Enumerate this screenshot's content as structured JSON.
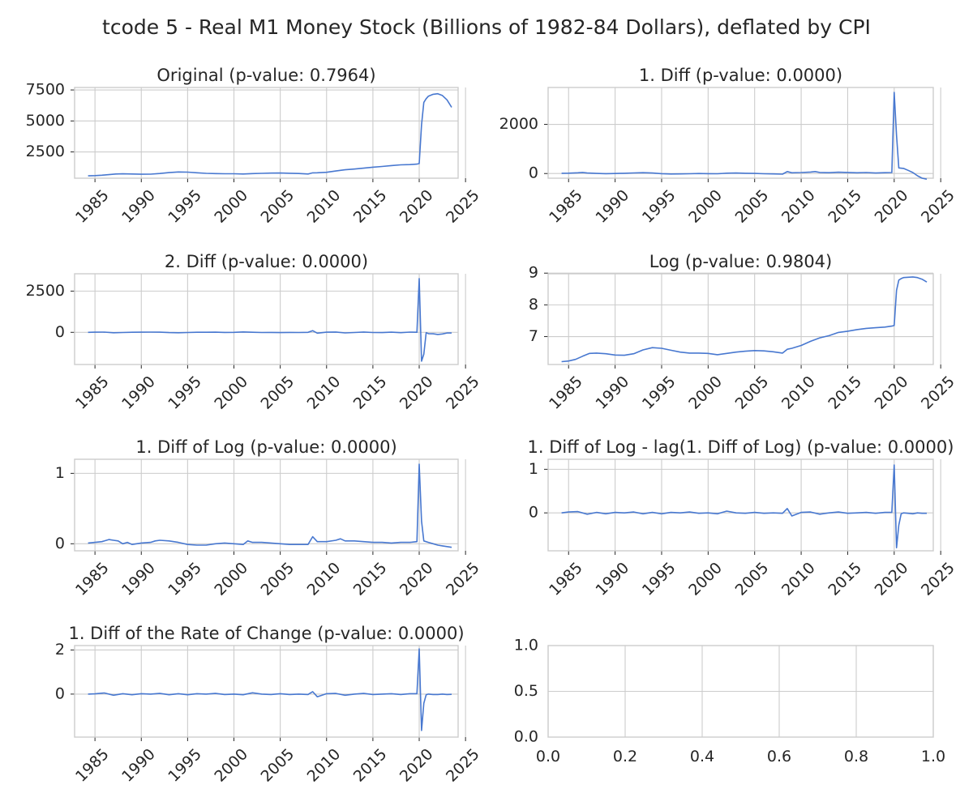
{
  "figure": {
    "suptitle": "tcode 5 - Real M1 Money Stock (Billions of 1982-84 Dollars), deflated by CPI",
    "line_color": "#4878d0",
    "grid_color": "#cccccc"
  },
  "chart_data": [
    {
      "type": "line",
      "title": "Original (p-value: 0.7964)",
      "xticks": [
        "1985",
        "1990",
        "1995",
        "2000",
        "2005",
        "2010",
        "2015",
        "2020",
        "2025"
      ],
      "yticks": [
        2500,
        5000,
        7500
      ],
      "xlim": [
        1982.8,
        2024.2
      ],
      "ylim": [
        380,
        7700
      ],
      "series": [
        {
          "x": [
            1984.25,
            1985.0,
            1985.75,
            1986.5,
            1987.25,
            1988.0,
            1989.0,
            1990.0,
            1991.0,
            1992.0,
            1993.0,
            1994.0,
            1995.0,
            1996.0,
            1997.0,
            1998.0,
            1999.0,
            2000.0,
            2001.0,
            2002.0,
            2003.0,
            2004.0,
            2005.0,
            2006.0,
            2007.0,
            2008.0,
            2008.5,
            2009.0,
            2010.0,
            2011.0,
            2012.0,
            2013.0,
            2014.0,
            2015.0,
            2016.0,
            2017.0,
            2018.0,
            2019.0,
            2019.75,
            2020.0,
            2020.25,
            2020.5,
            2020.75,
            2021.0,
            2021.5,
            2022.0,
            2022.5,
            2023.0,
            2023.5
          ],
          "y": [
            570,
            590,
            620,
            670,
            720,
            730,
            720,
            700,
            710,
            760,
            830,
            880,
            870,
            820,
            770,
            750,
            740,
            740,
            720,
            750,
            770,
            790,
            800,
            780,
            760,
            720,
            810,
            820,
            860,
            960,
            1060,
            1120,
            1190,
            1270,
            1330,
            1400,
            1460,
            1480,
            1520,
            1560,
            4700,
            6500,
            6800,
            7000,
            7150,
            7200,
            7050,
            6700,
            6100
          ]
        }
      ]
    },
    {
      "type": "line",
      "title": "1. Diff (p-value: 0.0000)",
      "xticks": [
        "1985",
        "1990",
        "1995",
        "2000",
        "2005",
        "2010",
        "2015",
        "2020",
        "2025"
      ],
      "yticks": [
        0,
        2000
      ],
      "xlim": [
        1982.8,
        2024.2
      ],
      "ylim": [
        -190,
        3500
      ],
      "series": [
        {
          "x": [
            1984.25,
            1985.0,
            1986.0,
            1986.5,
            1987.0,
            1988.0,
            1989.0,
            1990.0,
            1991.0,
            1992.0,
            1993.0,
            1994.0,
            1995.0,
            1996.0,
            1997.0,
            1998.0,
            1999.0,
            2000.0,
            2001.0,
            2002.0,
            2003.0,
            2004.0,
            2005.0,
            2006.0,
            2007.0,
            2008.0,
            2008.5,
            2009.0,
            2010.0,
            2011.0,
            2011.5,
            2012.0,
            2013.0,
            2014.0,
            2015.0,
            2016.0,
            2017.0,
            2018.0,
            2019.0,
            2019.75,
            2020.0,
            2020.25,
            2020.5,
            2021.0,
            2021.5,
            2022.0,
            2022.5,
            2023.0,
            2023.5
          ],
          "y": [
            10,
            15,
            30,
            45,
            20,
            5,
            -5,
            0,
            10,
            25,
            35,
            20,
            -5,
            -20,
            -15,
            -10,
            0,
            -5,
            -10,
            15,
            20,
            10,
            5,
            -10,
            -15,
            -25,
            80,
            30,
            40,
            60,
            80,
            45,
            35,
            55,
            45,
            30,
            40,
            20,
            35,
            40,
            3300,
            1550,
            230,
            210,
            130,
            40,
            -90,
            -190,
            -230
          ]
        }
      ]
    },
    {
      "type": "line",
      "title": "2. Diff (p-value: 0.0000)",
      "xticks": [
        "1985",
        "1990",
        "1995",
        "2000",
        "2005",
        "2010",
        "2015",
        "2020",
        "2025"
      ],
      "yticks": [
        0,
        2500
      ],
      "xlim": [
        1982.8,
        2024.2
      ],
      "ylim": [
        -1950,
        3550
      ],
      "series": [
        {
          "x": [
            1984.25,
            1985.0,
            1986.0,
            1987.0,
            1988.0,
            1989.0,
            1990.0,
            1991.0,
            1992.0,
            1993.0,
            1994.0,
            1995.0,
            1996.0,
            1997.0,
            1998.0,
            1999.0,
            2000.0,
            2001.0,
            2002.0,
            2003.0,
            2004.0,
            2005.0,
            2006.0,
            2007.0,
            2008.0,
            2008.5,
            2009.0,
            2010.0,
            2011.0,
            2012.0,
            2013.0,
            2014.0,
            2015.0,
            2016.0,
            2017.0,
            2018.0,
            2019.0,
            2019.75,
            2020.0,
            2020.25,
            2020.5,
            2020.75,
            2021.0,
            2021.5,
            2022.0,
            2022.5,
            2023.0,
            2023.5
          ],
          "y": [
            0,
            10,
            15,
            -25,
            -10,
            5,
            10,
            15,
            10,
            -15,
            -25,
            -10,
            5,
            5,
            10,
            -5,
            0,
            25,
            5,
            -10,
            -5,
            -15,
            -5,
            -10,
            0,
            105,
            -50,
            10,
            20,
            -35,
            -10,
            20,
            -10,
            -15,
            10,
            -20,
            15,
            5,
            3260,
            -1750,
            -1320,
            -20,
            -80,
            -90,
            -130,
            -100,
            -40,
            -40
          ]
        }
      ]
    },
    {
      "type": "line",
      "title": "Log (p-value: 0.9804)",
      "xticks": [
        "1985",
        "1990",
        "1995",
        "2000",
        "2005",
        "2010",
        "2015",
        "2020",
        "2025"
      ],
      "yticks": [
        7,
        8,
        9
      ],
      "xlim": [
        1982.8,
        2024.2
      ],
      "ylim": [
        6.12,
        8.98
      ],
      "series": [
        {
          "x": [
            1984.25,
            1985.0,
            1985.75,
            1986.5,
            1987.25,
            1988.0,
            1989.0,
            1990.0,
            1991.0,
            1992.0,
            1993.0,
            1994.0,
            1995.0,
            1996.0,
            1997.0,
            1998.0,
            1999.0,
            2000.0,
            2001.0,
            2002.0,
            2003.0,
            2004.0,
            2005.0,
            2006.0,
            2007.0,
            2008.0,
            2008.5,
            2009.0,
            2010.0,
            2011.0,
            2012.0,
            2013.0,
            2014.0,
            2015.0,
            2016.0,
            2017.0,
            2018.0,
            2019.0,
            2019.75,
            2020.0,
            2020.25,
            2020.5,
            2020.75,
            2021.0,
            2021.5,
            2022.0,
            2022.5,
            2023.0,
            2023.5
          ],
          "y": [
            6.21,
            6.23,
            6.28,
            6.38,
            6.47,
            6.48,
            6.46,
            6.42,
            6.41,
            6.46,
            6.58,
            6.65,
            6.63,
            6.57,
            6.51,
            6.48,
            6.48,
            6.47,
            6.43,
            6.47,
            6.51,
            6.54,
            6.56,
            6.55,
            6.52,
            6.48,
            6.6,
            6.63,
            6.72,
            6.85,
            6.96,
            7.03,
            7.13,
            7.17,
            7.22,
            7.26,
            7.28,
            7.3,
            7.33,
            7.35,
            8.46,
            8.78,
            8.83,
            8.86,
            8.87,
            8.88,
            8.86,
            8.81,
            8.72
          ]
        }
      ]
    },
    {
      "type": "line",
      "title": "1. Diff of Log (p-value: 0.0000)",
      "xticks": [
        "1985",
        "1990",
        "1995",
        "2000",
        "2005",
        "2010",
        "2015",
        "2020",
        "2025"
      ],
      "yticks": [
        0,
        1
      ],
      "xlim": [
        1982.8,
        2024.2
      ],
      "ylim": [
        -0.1,
        1.2
      ],
      "series": [
        {
          "x": [
            1984.25,
            1985.0,
            1985.75,
            1986.5,
            1987.0,
            1987.5,
            1988.0,
            1988.5,
            1989.0,
            1990.0,
            1991.0,
            1991.5,
            1992.0,
            1993.0,
            1994.0,
            1995.0,
            1996.0,
            1997.0,
            1998.0,
            1999.0,
            2000.0,
            2001.0,
            2001.5,
            2002.0,
            2003.0,
            2004.0,
            2005.0,
            2006.0,
            2007.0,
            2008.0,
            2008.5,
            2009.0,
            2010.0,
            2011.0,
            2011.5,
            2012.0,
            2013.0,
            2014.0,
            2015.0,
            2016.0,
            2017.0,
            2018.0,
            2019.0,
            2019.75,
            2020.0,
            2020.25,
            2020.5,
            2021.0,
            2021.5,
            2022.0,
            2022.5,
            2023.0,
            2023.5
          ],
          "y": [
            0.01,
            0.02,
            0.03,
            0.06,
            0.05,
            0.04,
            0.0,
            0.02,
            -0.01,
            0.01,
            0.02,
            0.04,
            0.05,
            0.04,
            0.02,
            -0.01,
            -0.02,
            -0.02,
            0.0,
            0.01,
            0.0,
            -0.01,
            0.04,
            0.02,
            0.02,
            0.01,
            0.0,
            -0.01,
            -0.01,
            -0.01,
            0.1,
            0.03,
            0.03,
            0.05,
            0.07,
            0.04,
            0.04,
            0.03,
            0.02,
            0.02,
            0.01,
            0.02,
            0.02,
            0.03,
            1.13,
            0.32,
            0.04,
            0.02,
            0.0,
            -0.02,
            -0.03,
            -0.04,
            -0.05
          ]
        }
      ]
    },
    {
      "type": "line",
      "title": "1. Diff of Log - lag(1. Diff of Log) (p-value: 0.0000)",
      "xticks": [
        "1985",
        "1990",
        "1995",
        "2000",
        "2005",
        "2010",
        "2015",
        "2020",
        "2025"
      ],
      "yticks": [
        0,
        1
      ],
      "xlim": [
        1982.8,
        2024.2
      ],
      "ylim": [
        -0.87,
        1.23
      ],
      "series": [
        {
          "x": [
            1984.25,
            1985.0,
            1986.0,
            1987.0,
            1988.0,
            1989.0,
            1990.0,
            1991.0,
            1992.0,
            1993.0,
            1994.0,
            1995.0,
            1996.0,
            1997.0,
            1998.0,
            1999.0,
            2000.0,
            2001.0,
            2002.0,
            2003.0,
            2004.0,
            2005.0,
            2006.0,
            2007.0,
            2008.0,
            2008.5,
            2009.0,
            2010.0,
            2011.0,
            2012.0,
            2013.0,
            2014.0,
            2015.0,
            2016.0,
            2017.0,
            2018.0,
            2019.0,
            2019.75,
            2020.0,
            2020.25,
            2020.5,
            2020.75,
            2021.0,
            2021.5,
            2022.0,
            2022.5,
            2023.0,
            2023.5
          ],
          "y": [
            0.0,
            0.02,
            0.03,
            -0.03,
            0.01,
            -0.02,
            0.01,
            0.0,
            0.02,
            -0.02,
            0.01,
            -0.02,
            0.01,
            0.0,
            0.02,
            -0.01,
            0.0,
            -0.02,
            0.04,
            0.0,
            -0.01,
            0.01,
            -0.01,
            0.0,
            -0.01,
            0.1,
            -0.07,
            0.01,
            0.02,
            -0.03,
            0.0,
            0.02,
            -0.01,
            0.0,
            0.01,
            -0.01,
            0.01,
            0.01,
            1.1,
            -0.8,
            -0.28,
            -0.02,
            0.0,
            -0.01,
            -0.02,
            0.0,
            -0.01,
            -0.01
          ]
        }
      ]
    },
    {
      "type": "line",
      "title": "1. Diff of the Rate of Change (p-value: 0.0000)",
      "xticks": [
        "1985",
        "1990",
        "1995",
        "2000",
        "2005",
        "2010",
        "2015",
        "2020",
        "2025"
      ],
      "yticks": [
        0,
        2
      ],
      "xlim": [
        1982.8,
        2024.2
      ],
      "ylim": [
        -1.95,
        2.2
      ],
      "series": [
        {
          "x": [
            1984.25,
            1985.0,
            1986.0,
            1987.0,
            1988.0,
            1989.0,
            1990.0,
            1991.0,
            1992.0,
            1993.0,
            1994.0,
            1995.0,
            1996.0,
            1997.0,
            1998.0,
            1999.0,
            2000.0,
            2001.0,
            2002.0,
            2003.0,
            2004.0,
            2005.0,
            2006.0,
            2007.0,
            2008.0,
            2008.5,
            2009.0,
            2010.0,
            2011.0,
            2012.0,
            2013.0,
            2014.0,
            2015.0,
            2016.0,
            2017.0,
            2018.0,
            2019.0,
            2019.75,
            2020.0,
            2020.25,
            2020.5,
            2020.75,
            2021.0,
            2021.5,
            2022.0,
            2022.5,
            2023.0,
            2023.5
          ],
          "y": [
            0.0,
            0.01,
            0.05,
            -0.05,
            0.02,
            -0.03,
            0.02,
            0.0,
            0.03,
            -0.03,
            0.02,
            -0.03,
            0.02,
            0.0,
            0.03,
            -0.02,
            0.0,
            -0.03,
            0.06,
            0.0,
            -0.02,
            0.02,
            -0.02,
            0.0,
            -0.02,
            0.11,
            -0.12,
            0.02,
            0.03,
            -0.05,
            0.0,
            0.03,
            -0.02,
            0.0,
            0.02,
            -0.02,
            0.02,
            0.02,
            2.05,
            -1.65,
            -0.42,
            -0.03,
            0.0,
            -0.02,
            -0.02,
            0.0,
            -0.02,
            -0.01
          ]
        }
      ]
    },
    {
      "type": "line",
      "title": "",
      "xticks": [
        "0.0",
        "0.2",
        "0.4",
        "0.6",
        "0.8",
        "1.0"
      ],
      "yticks": [
        "0.0",
        "0.5",
        "1.0"
      ],
      "xlim": [
        0,
        1
      ],
      "ylim": [
        0,
        1
      ],
      "series": []
    }
  ]
}
